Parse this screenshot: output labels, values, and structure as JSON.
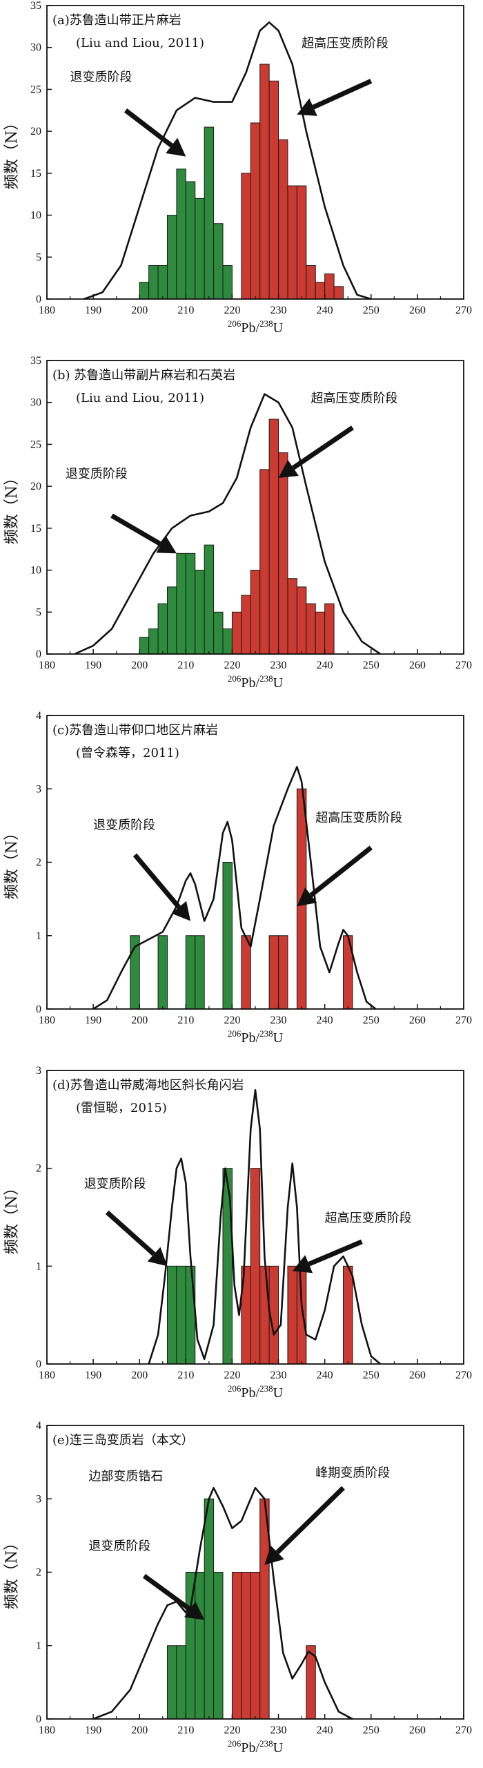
{
  "colors": {
    "retro": "#2e8b3e",
    "uhp": "#cc3b32",
    "curve": "#111111"
  },
  "chart_data": [
    {
      "type": "bar",
      "panel": "a",
      "title": "(a)苏鲁造山带正片麻岩",
      "subtitle": "(Liu and Liou, 2011)",
      "ylabel": "频数（N）",
      "xlabel_parts": [
        "206",
        "Pb/",
        "238",
        "U"
      ],
      "xlim": [
        180,
        270
      ],
      "ylim": [
        0,
        35
      ],
      "xticks": [
        180,
        190,
        200,
        210,
        220,
        230,
        240,
        250,
        260,
        270
      ],
      "yticks": [
        0,
        5,
        10,
        15,
        20,
        25,
        30,
        35
      ],
      "bin_width": 2,
      "series": [
        {
          "name": "退变质阶段",
          "color_key": "retro",
          "x": [
            200,
            202,
            204,
            206,
            208,
            210,
            212,
            214,
            216,
            218
          ],
          "values": [
            2,
            4,
            4,
            10,
            15.5,
            14,
            12,
            20.5,
            9,
            4
          ]
        },
        {
          "name": "超高压变质阶段",
          "color_key": "uhp",
          "x": [
            222,
            224,
            226,
            228,
            230,
            232,
            234,
            236,
            238,
            240,
            242
          ],
          "values": [
            15,
            21,
            28,
            26,
            19,
            13.5,
            13.5,
            4,
            2,
            3,
            1.5
          ]
        }
      ],
      "curve": [
        [
          188,
          0
        ],
        [
          192,
          0.8
        ],
        [
          196,
          4
        ],
        [
          200,
          11
        ],
        [
          204,
          18
        ],
        [
          208,
          22.5
        ],
        [
          212,
          24
        ],
        [
          216,
          23.5
        ],
        [
          220,
          23.5
        ],
        [
          223,
          27
        ],
        [
          226,
          32
        ],
        [
          228,
          33
        ],
        [
          230,
          32
        ],
        [
          233,
          28
        ],
        [
          236,
          20
        ],
        [
          240,
          11
        ],
        [
          244,
          4
        ],
        [
          247,
          0.5
        ],
        [
          250,
          0
        ]
      ],
      "annotations": [
        {
          "text": "退变质阶段",
          "tx": 185,
          "ty": 26,
          "from": [
            197,
            22.5
          ],
          "to": [
            210,
            17
          ]
        },
        {
          "text": "超高压变质阶段",
          "tx": 235,
          "ty": 30,
          "from": [
            250,
            26
          ],
          "to": [
            234,
            22
          ]
        }
      ]
    },
    {
      "type": "bar",
      "panel": "b",
      "title": "(b) 苏鲁造山带副片麻岩和石英岩",
      "subtitle": "(Liu and Liou, 2011)",
      "ylabel": "频数（N）",
      "xlabel_parts": [
        "206",
        "Pb/",
        "238",
        "U"
      ],
      "xlim": [
        180,
        270
      ],
      "ylim": [
        0,
        35
      ],
      "xticks": [
        180,
        190,
        200,
        210,
        220,
        230,
        240,
        250,
        260,
        270
      ],
      "yticks": [
        0,
        5,
        10,
        15,
        20,
        25,
        30,
        35
      ],
      "bin_width": 2,
      "series": [
        {
          "name": "退变质阶段",
          "color_key": "retro",
          "x": [
            200,
            202,
            204,
            206,
            208,
            210,
            212,
            214,
            216,
            218
          ],
          "values": [
            2,
            3,
            6,
            8,
            12,
            12,
            10,
            13,
            5,
            3
          ]
        },
        {
          "name": "超高压变质阶段",
          "color_key": "uhp",
          "x": [
            220,
            222,
            224,
            226,
            228,
            230,
            232,
            234,
            236,
            238,
            240
          ],
          "values": [
            5,
            7,
            10,
            22,
            28,
            24,
            9,
            8,
            6,
            5,
            6
          ]
        }
      ],
      "curve": [
        [
          186,
          0
        ],
        [
          190,
          1
        ],
        [
          194,
          3
        ],
        [
          198,
          7
        ],
        [
          203,
          12
        ],
        [
          207,
          15
        ],
        [
          211,
          16.5
        ],
        [
          215,
          17
        ],
        [
          218,
          18
        ],
        [
          221,
          21
        ],
        [
          224,
          27
        ],
        [
          227,
          31
        ],
        [
          230,
          30
        ],
        [
          233,
          27
        ],
        [
          236,
          20
        ],
        [
          240,
          11
        ],
        [
          244,
          5
        ],
        [
          248,
          1.5
        ],
        [
          252,
          0
        ]
      ],
      "annotations": [
        {
          "text": "退变质阶段",
          "tx": 184,
          "ty": 21,
          "from": [
            194,
            16.5
          ],
          "to": [
            208,
            12
          ]
        },
        {
          "text": "超高压变质阶段",
          "tx": 237,
          "ty": 30,
          "from": [
            246,
            27
          ],
          "to": [
            230,
            21
          ]
        }
      ]
    },
    {
      "type": "bar",
      "panel": "c",
      "title": "(c)苏鲁造山带仰口地区片麻岩",
      "subtitle": "(曾令森等，2011)",
      "ylabel": "频数（N）",
      "xlabel_parts": [
        "206",
        "Pb/",
        "238",
        "U"
      ],
      "xlim": [
        180,
        270
      ],
      "ylim": [
        0,
        4
      ],
      "xticks": [
        180,
        190,
        200,
        210,
        220,
        230,
        240,
        250,
        260,
        270
      ],
      "yticks": [
        0,
        1,
        2,
        3,
        4
      ],
      "bin_width": 2,
      "series": [
        {
          "name": "退变质阶段",
          "color_key": "retro",
          "x": [
            198,
            204,
            210,
            212,
            218
          ],
          "values": [
            1,
            1,
            1,
            1,
            2
          ]
        },
        {
          "name": "超高压变质阶段",
          "color_key": "uhp",
          "x": [
            222,
            228,
            230,
            234,
            244
          ],
          "values": [
            1,
            1,
            1,
            3,
            1
          ]
        }
      ],
      "curve": [
        [
          190,
          0
        ],
        [
          193,
          0.12
        ],
        [
          196,
          0.5
        ],
        [
          199,
          0.85
        ],
        [
          202,
          0.95
        ],
        [
          205,
          1.05
        ],
        [
          208,
          1.4
        ],
        [
          210,
          1.75
        ],
        [
          211,
          1.85
        ],
        [
          212,
          1.7
        ],
        [
          214,
          1.2
        ],
        [
          216,
          1.5
        ],
        [
          218,
          2.4
        ],
        [
          219,
          2.55
        ],
        [
          220,
          2.3
        ],
        [
          222,
          1.1
        ],
        [
          224,
          0.85
        ],
        [
          226,
          1.5
        ],
        [
          229,
          2.5
        ],
        [
          232,
          3
        ],
        [
          234,
          3.3
        ],
        [
          235,
          3.1
        ],
        [
          237,
          2
        ],
        [
          239,
          0.85
        ],
        [
          241,
          0.5
        ],
        [
          243,
          0.9
        ],
        [
          244,
          1.08
        ],
        [
          245,
          1
        ],
        [
          247,
          0.5
        ],
        [
          249,
          0.1
        ],
        [
          251,
          0
        ]
      ],
      "annotations": [
        {
          "text": "退变质阶段",
          "tx": 190,
          "ty": 2.45,
          "from": [
            199,
            2.1
          ],
          "to": [
            211,
            1.2
          ]
        },
        {
          "text": "超高压变质阶段",
          "tx": 238,
          "ty": 2.55,
          "from": [
            250,
            2.2
          ],
          "to": [
            234,
            1.4
          ]
        }
      ]
    },
    {
      "type": "bar",
      "panel": "d",
      "title": "(d)苏鲁造山带威海地区斜长角闪岩",
      "subtitle": "(雷恒聪，2015)",
      "ylabel": "频数（N）",
      "xlabel_parts": [
        "206",
        "Pb/",
        "238",
        "U"
      ],
      "xlim": [
        180,
        270
      ],
      "ylim": [
        0,
        3
      ],
      "xticks": [
        180,
        190,
        200,
        210,
        220,
        230,
        240,
        250,
        260,
        270
      ],
      "yticks": [
        0,
        1,
        2,
        3
      ],
      "bin_width": 2,
      "series": [
        {
          "name": "退变质阶段",
          "color_key": "retro",
          "x": [
            206,
            208,
            210,
            218
          ],
          "values": [
            1,
            1,
            1,
            2
          ]
        },
        {
          "name": "超高压变质阶段",
          "color_key": "uhp",
          "x": [
            222,
            224,
            226,
            228,
            232,
            234,
            244
          ],
          "values": [
            1,
            2,
            1,
            1,
            1,
            1,
            1
          ]
        }
      ],
      "curve": [
        [
          202,
          0
        ],
        [
          204,
          0.3
        ],
        [
          205.5,
          0.9
        ],
        [
          207,
          1.6
        ],
        [
          208,
          2
        ],
        [
          209,
          2.1
        ],
        [
          210,
          1.85
        ],
        [
          211,
          1.1
        ],
        [
          212.5,
          0.25
        ],
        [
          214,
          0.05
        ],
        [
          216,
          0.4
        ],
        [
          217.5,
          1.5
        ],
        [
          218.5,
          2
        ],
        [
          219.5,
          1.7
        ],
        [
          220.5,
          0.8
        ],
        [
          221.5,
          0.5
        ],
        [
          222.5,
          0.9
        ],
        [
          224,
          2.4
        ],
        [
          225,
          2.8
        ],
        [
          226,
          2.4
        ],
        [
          227,
          1.1
        ],
        [
          228,
          0.55
        ],
        [
          229,
          0.3
        ],
        [
          230.5,
          0.4
        ],
        [
          232,
          1.6
        ],
        [
          233,
          2.05
        ],
        [
          234,
          1.6
        ],
        [
          235,
          0.6
        ],
        [
          236,
          0.3
        ],
        [
          238,
          0.25
        ],
        [
          240,
          0.55
        ],
        [
          242,
          1
        ],
        [
          244,
          1.1
        ],
        [
          246,
          0.9
        ],
        [
          248,
          0.4
        ],
        [
          250,
          0.08
        ],
        [
          252,
          0
        ]
      ],
      "annotations": [
        {
          "text": "退变质阶段",
          "tx": 188,
          "ty": 1.8,
          "from": [
            193,
            1.55
          ],
          "to": [
            206,
            1
          ]
        },
        {
          "text": "超高压变质阶段",
          "tx": 240,
          "ty": 1.45,
          "from": [
            248,
            1.25
          ],
          "to": [
            233,
            0.95
          ]
        }
      ]
    },
    {
      "type": "bar",
      "panel": "e",
      "title": "(e)连三岛变质岩（本文）",
      "subtitle": "",
      "ylabel": "频数（N）",
      "xlabel_parts": [
        "206",
        "Pb/",
        "238",
        "U"
      ],
      "xlim": [
        180,
        270
      ],
      "ylim": [
        0,
        4
      ],
      "xticks": [
        180,
        190,
        200,
        210,
        220,
        230,
        240,
        250,
        260,
        270
      ],
      "yticks": [
        0,
        1,
        2,
        3,
        4
      ],
      "bin_width": 2,
      "series": [
        {
          "name": "退变质阶段",
          "color_key": "retro",
          "x": [
            206,
            208,
            210,
            212,
            214,
            216
          ],
          "values": [
            1,
            1,
            2,
            2,
            3,
            2
          ]
        },
        {
          "name": "峰期变质阶段",
          "color_key": "uhp",
          "x": [
            220,
            222,
            224,
            226,
            236
          ],
          "values": [
            2,
            2,
            2,
            3,
            1
          ]
        }
      ],
      "curve": [
        [
          190,
          0
        ],
        [
          194,
          0.1
        ],
        [
          198,
          0.4
        ],
        [
          201,
          0.85
        ],
        [
          204,
          1.3
        ],
        [
          206,
          1.55
        ],
        [
          208,
          1.6
        ],
        [
          210,
          1.45
        ],
        [
          211,
          1.5
        ],
        [
          213,
          2.3
        ],
        [
          215,
          3
        ],
        [
          216,
          3.15
        ],
        [
          218,
          2.9
        ],
        [
          220,
          2.6
        ],
        [
          222,
          2.7
        ],
        [
          224,
          3
        ],
        [
          225,
          3.15
        ],
        [
          227,
          3
        ],
        [
          229,
          1.9
        ],
        [
          231,
          0.9
        ],
        [
          233,
          0.55
        ],
        [
          235,
          0.75
        ],
        [
          236.5,
          0.92
        ],
        [
          238,
          0.85
        ],
        [
          240,
          0.5
        ],
        [
          243,
          0.1
        ],
        [
          246,
          0
        ]
      ],
      "annotations": [
        {
          "text": "边部变质锆石",
          "tx": 189,
          "ty": 3.25,
          "from": null,
          "to": null
        },
        {
          "text": "退变质阶段",
          "tx": 189,
          "ty": 2.3,
          "from": [
            201,
            1.95
          ],
          "to": [
            214,
            1.35
          ]
        },
        {
          "text": "峰期变质阶段",
          "tx": 238,
          "ty": 3.3,
          "from": [
            244,
            3.15
          ],
          "to": [
            227,
            2.1
          ]
        }
      ]
    }
  ]
}
